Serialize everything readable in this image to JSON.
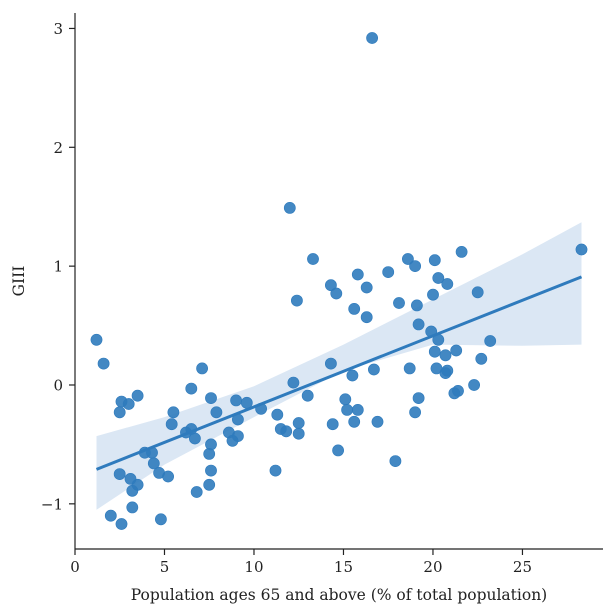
{
  "chart_data": {
    "type": "scatter",
    "title": "",
    "xlabel": "Population ages 65 and above (% of total population)",
    "ylabel": "GIII",
    "xlim": [
      0,
      29.5
    ],
    "ylim": [
      -1.38,
      3.13
    ],
    "xticks": [
      0,
      5,
      10,
      15,
      20,
      25
    ],
    "yticks": [
      -1,
      0,
      1,
      2,
      3
    ],
    "ytick_labels": [
      "−1",
      "0",
      "1",
      "2",
      "3"
    ],
    "grid": false,
    "legend": "none",
    "color": "#2f7bbd",
    "band_color": "#dbe7f4",
    "points": [
      [
        1.2,
        0.38
      ],
      [
        1.6,
        0.18
      ],
      [
        2.0,
        -1.1
      ],
      [
        2.5,
        -0.23
      ],
      [
        2.6,
        -0.14
      ],
      [
        2.5,
        -0.75
      ],
      [
        2.6,
        -1.17
      ],
      [
        3.0,
        -0.16
      ],
      [
        3.1,
        -0.79
      ],
      [
        3.2,
        -0.89
      ],
      [
        3.2,
        -1.03
      ],
      [
        3.5,
        -0.84
      ],
      [
        3.5,
        -0.09
      ],
      [
        3.9,
        -0.57
      ],
      [
        4.3,
        -0.57
      ],
      [
        4.4,
        -0.66
      ],
      [
        4.7,
        -0.74
      ],
      [
        4.8,
        -1.13
      ],
      [
        5.2,
        -0.77
      ],
      [
        5.4,
        -0.33
      ],
      [
        5.5,
        -0.23
      ],
      [
        6.2,
        -0.4
      ],
      [
        6.5,
        -0.37
      ],
      [
        6.5,
        -0.03
      ],
      [
        6.7,
        -0.45
      ],
      [
        6.8,
        -0.9
      ],
      [
        7.1,
        0.14
      ],
      [
        7.5,
        -0.58
      ],
      [
        7.5,
        -0.84
      ],
      [
        7.6,
        -0.72
      ],
      [
        7.6,
        -0.5
      ],
      [
        7.6,
        -0.11
      ],
      [
        7.9,
        -0.23
      ],
      [
        8.6,
        -0.4
      ],
      [
        8.8,
        -0.47
      ],
      [
        9.0,
        -0.13
      ],
      [
        9.1,
        -0.43
      ],
      [
        9.1,
        -0.29
      ],
      [
        9.6,
        -0.15
      ],
      [
        10.4,
        -0.2
      ],
      [
        11.2,
        -0.72
      ],
      [
        11.3,
        -0.25
      ],
      [
        11.5,
        -0.37
      ],
      [
        11.8,
        -0.39
      ],
      [
        12.0,
        1.49
      ],
      [
        12.2,
        0.02
      ],
      [
        12.4,
        0.71
      ],
      [
        12.5,
        -0.32
      ],
      [
        12.5,
        -0.41
      ],
      [
        13.0,
        -0.09
      ],
      [
        13.3,
        1.06
      ],
      [
        14.3,
        0.84
      ],
      [
        14.3,
        0.18
      ],
      [
        14.4,
        -0.33
      ],
      [
        14.6,
        0.77
      ],
      [
        14.7,
        -0.55
      ],
      [
        15.1,
        -0.12
      ],
      [
        15.2,
        -0.21
      ],
      [
        15.5,
        0.08
      ],
      [
        15.6,
        0.64
      ],
      [
        15.6,
        -0.31
      ],
      [
        15.8,
        -0.21
      ],
      [
        15.8,
        0.93
      ],
      [
        16.3,
        0.82
      ],
      [
        16.3,
        0.57
      ],
      [
        16.6,
        2.92
      ],
      [
        16.7,
        0.13
      ],
      [
        16.9,
        -0.31
      ],
      [
        17.5,
        0.95
      ],
      [
        17.9,
        -0.64
      ],
      [
        18.1,
        0.69
      ],
      [
        18.6,
        1.06
      ],
      [
        18.7,
        0.14
      ],
      [
        19.0,
        1.0
      ],
      [
        19.0,
        -0.23
      ],
      [
        19.1,
        0.67
      ],
      [
        19.2,
        -0.11
      ],
      [
        19.2,
        0.51
      ],
      [
        19.9,
        0.45
      ],
      [
        20.0,
        0.76
      ],
      [
        20.1,
        1.05
      ],
      [
        20.1,
        0.28
      ],
      [
        20.2,
        0.14
      ],
      [
        20.3,
        0.9
      ],
      [
        20.3,
        0.38
      ],
      [
        20.7,
        0.1
      ],
      [
        20.7,
        0.25
      ],
      [
        20.8,
        0.85
      ],
      [
        20.8,
        0.12
      ],
      [
        21.2,
        -0.07
      ],
      [
        21.3,
        0.29
      ],
      [
        21.4,
        -0.05
      ],
      [
        21.6,
        1.12
      ],
      [
        22.3,
        0.0
      ],
      [
        22.5,
        0.78
      ],
      [
        22.7,
        0.22
      ],
      [
        23.2,
        0.37
      ],
      [
        28.3,
        1.14
      ]
    ],
    "regression": {
      "x": [
        1.2,
        28.3
      ],
      "y": [
        -0.71,
        0.91
      ],
      "ci_x": [
        1.2,
        5,
        10,
        15,
        20,
        25,
        28.3
      ],
      "ci_upper": [
        -0.43,
        -0.27,
        -0.01,
        0.34,
        0.72,
        1.1,
        1.37
      ],
      "ci_lower": [
        -1.05,
        -0.67,
        -0.27,
        0.12,
        0.34,
        0.33,
        0.34
      ]
    }
  }
}
